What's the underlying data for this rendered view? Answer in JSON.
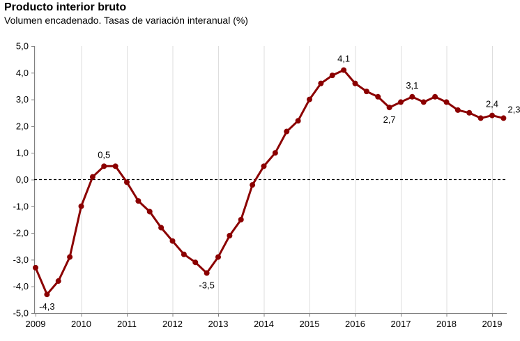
{
  "chart_data": {
    "type": "line",
    "title": "Producto interior bruto",
    "subtitle": "Volumen encadenado. Tasas de variación interanual (%)",
    "xlabel": "",
    "ylabel": "",
    "ylim": [
      -5.0,
      5.0
    ],
    "y_ticks": [
      "5,0",
      "4,0",
      "3,0",
      "2,0",
      "1,0",
      "0,0",
      "-1,0",
      "-2,0",
      "-3,0",
      "-4,0",
      "-5,0"
    ],
    "x_tick_labels": [
      "2009",
      "2010",
      "2011",
      "2012",
      "2013",
      "2014",
      "2015",
      "2016",
      "2017",
      "2018",
      "2019"
    ],
    "grid": "vertical",
    "reference_line": 0,
    "line_color": "#8B0000",
    "series": [
      {
        "x": [
          "2009 T1",
          "2009 T2",
          "2009 T3",
          "2009 T4",
          "2010 T1",
          "2010 T2",
          "2010 T3",
          "2010 T4",
          "2011 T1",
          "2011 T2",
          "2011 T3",
          "2011 T4",
          "2012 T1",
          "2012 T2",
          "2012 T3",
          "2012 T4",
          "2013 T1",
          "2013 T2",
          "2013 T3",
          "2013 T4",
          "2014 T1",
          "2014 T2",
          "2014 T3",
          "2014 T4",
          "2015 T1",
          "2015 T2",
          "2015 T3",
          "2015 T4",
          "2016 T1",
          "2016 T2",
          "2016 T3",
          "2016 T4",
          "2017 T1",
          "2017 T2",
          "2017 T3",
          "2017 T4",
          "2018 T1",
          "2018 T2",
          "2018 T3",
          "2018 T4",
          "2019 T1",
          "2019 T2"
        ],
        "values": [
          -3.3,
          -4.3,
          -3.8,
          -2.9,
          -1.0,
          0.1,
          0.5,
          0.5,
          -0.1,
          -0.8,
          -1.2,
          -1.8,
          -2.3,
          -2.8,
          -3.1,
          -3.5,
          -2.9,
          -2.1,
          -1.5,
          -0.2,
          0.5,
          1.0,
          1.8,
          2.2,
          3.0,
          3.6,
          3.9,
          4.1,
          3.6,
          3.3,
          3.1,
          2.7,
          2.9,
          3.1,
          2.9,
          3.1,
          2.9,
          2.6,
          2.5,
          2.3,
          2.4,
          2.3
        ]
      }
    ],
    "data_labels": [
      {
        "index": 1,
        "text": "-4,3",
        "pos": "below"
      },
      {
        "index": 6,
        "text": "0,5",
        "pos": "above"
      },
      {
        "index": 15,
        "text": "-3,5",
        "pos": "below"
      },
      {
        "index": 27,
        "text": "4,1",
        "pos": "above"
      },
      {
        "index": 31,
        "text": "2,7",
        "pos": "below"
      },
      {
        "index": 33,
        "text": "3,1",
        "pos": "above"
      },
      {
        "index": 40,
        "text": "2,4",
        "pos": "above"
      },
      {
        "index": 41,
        "text": "2,3",
        "pos": "right"
      }
    ]
  }
}
